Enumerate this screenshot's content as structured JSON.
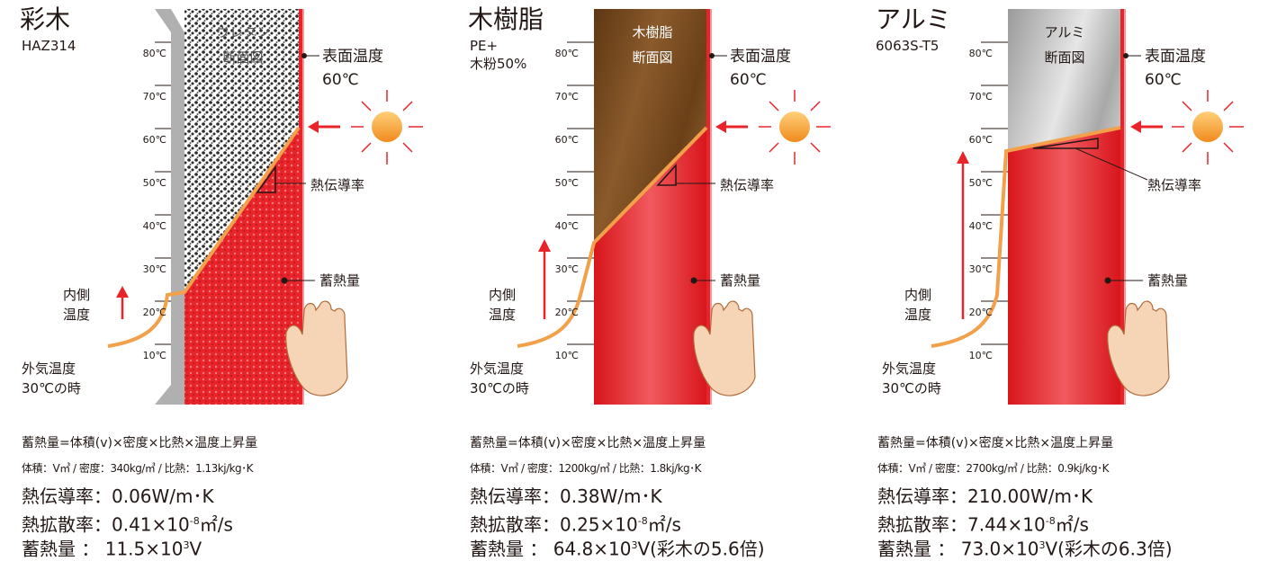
{
  "ticks": [
    "80℃",
    "70℃",
    "60℃",
    "50℃",
    "40℃",
    "30℃",
    "20℃",
    "10℃"
  ],
  "labels": {
    "surface_temp": "表面温度",
    "surface_value": "60℃",
    "conductivity": "熱伝導率",
    "heat_storage": "蓄熱量",
    "inner_temp_1": "内側",
    "inner_temp_2": "温度",
    "outside_1": "外気温度",
    "outside_2": "30℃の時",
    "formula": "蓄熱量=体積(v)×密度×比熱×温度上昇量"
  },
  "panels": [
    {
      "title": "彩木",
      "subtitle": [
        "HAZ314"
      ],
      "material_label": [
        "ウレタン",
        "断面図"
      ],
      "params": "体積：V㎥ / 密度：340kg/㎥ / 比熱：1.13kj/kg･K",
      "conductivity": "熱伝導率：0.06W/m･K",
      "diffusivity_prefix": "熱拡散率：0.41×10",
      "diffusivity_exp": "-8",
      "diffusivity_suffix": "㎡/s",
      "storage_prefix": "蓄熱量 ： 11.5×10",
      "storage_exp": "3",
      "storage_suffix": "V",
      "colors": {
        "material": "#e0e0e0",
        "heat": "#e8242a"
      }
    },
    {
      "title": "木樹脂",
      "subtitle": [
        "PE+",
        "木粉50%"
      ],
      "material_label": [
        "木樹脂",
        "断面図"
      ],
      "params": "体積：V㎥ / 密度：1200kg/㎥ / 比熱：1.8kj/kg･K",
      "conductivity": "熱伝導率：0.38W/m･K",
      "diffusivity_prefix": "熱拡散率：0.25×10",
      "diffusivity_exp": "-8",
      "diffusivity_suffix": "㎡/s",
      "storage_prefix": "蓄熱量 ： 64.8×10",
      "storage_exp": "3",
      "storage_suffix": "V(彩木の5.6倍)",
      "colors": {
        "material": "#7a4a1e",
        "heat": "#e8242a"
      }
    },
    {
      "title": "アルミ",
      "subtitle": [
        "6063S-T5"
      ],
      "material_label": [
        "アルミ",
        "断面図"
      ],
      "params": "体積：V㎥ / 密度：2700kg/㎥ / 比熱：0.9kj/kg･K",
      "conductivity": "熱伝導率：210.00W/m･K",
      "diffusivity_prefix": "熱拡散率：7.44×10",
      "diffusivity_exp": "-8",
      "diffusivity_suffix": "㎡/s",
      "storage_prefix": "蓄熱量 ： 73.0×10",
      "storage_exp": "3",
      "storage_suffix": "V(彩木の6.3倍)",
      "colors": {
        "material": "#c8c8c8",
        "heat": "#e8242a"
      }
    }
  ]
}
